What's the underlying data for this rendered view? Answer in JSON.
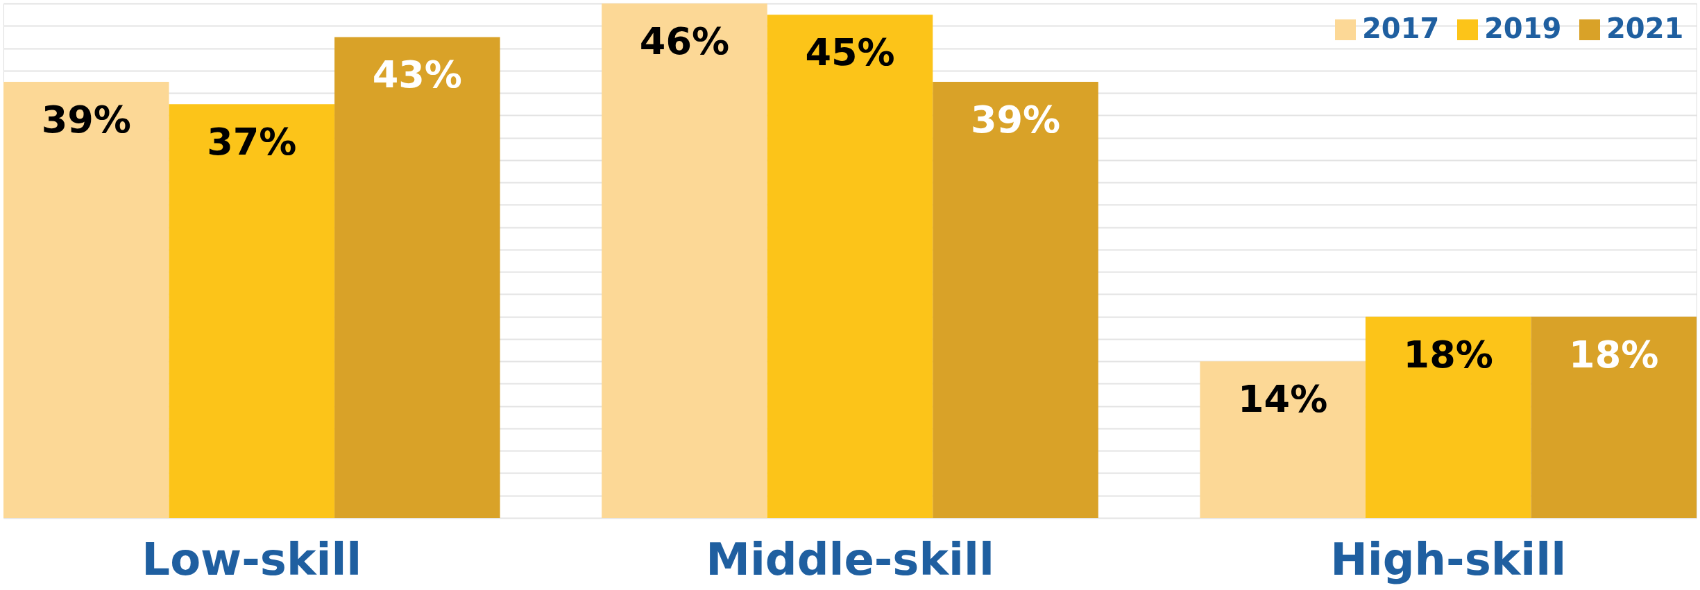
{
  "chart_data": {
    "type": "bar",
    "categories": [
      "Low-skill",
      "Middle-skill",
      "High-skill"
    ],
    "series": [
      {
        "name": "2017",
        "color": "#fcd896",
        "values": [
          39,
          46,
          14
        ],
        "value_labels": [
          "39%",
          "46%",
          "14%"
        ]
      },
      {
        "name": "2019",
        "color": "#fcc419",
        "values": [
          37,
          45,
          18
        ],
        "value_labels": [
          "37%",
          "45%",
          "18%"
        ]
      },
      {
        "name": "2021",
        "color": "#d9a228",
        "values": [
          43,
          39,
          18
        ],
        "value_labels": [
          "43%",
          "39%",
          "18%"
        ]
      }
    ],
    "tick_labels": "x",
    "grid": "y",
    "legend": "top right"
  }
}
